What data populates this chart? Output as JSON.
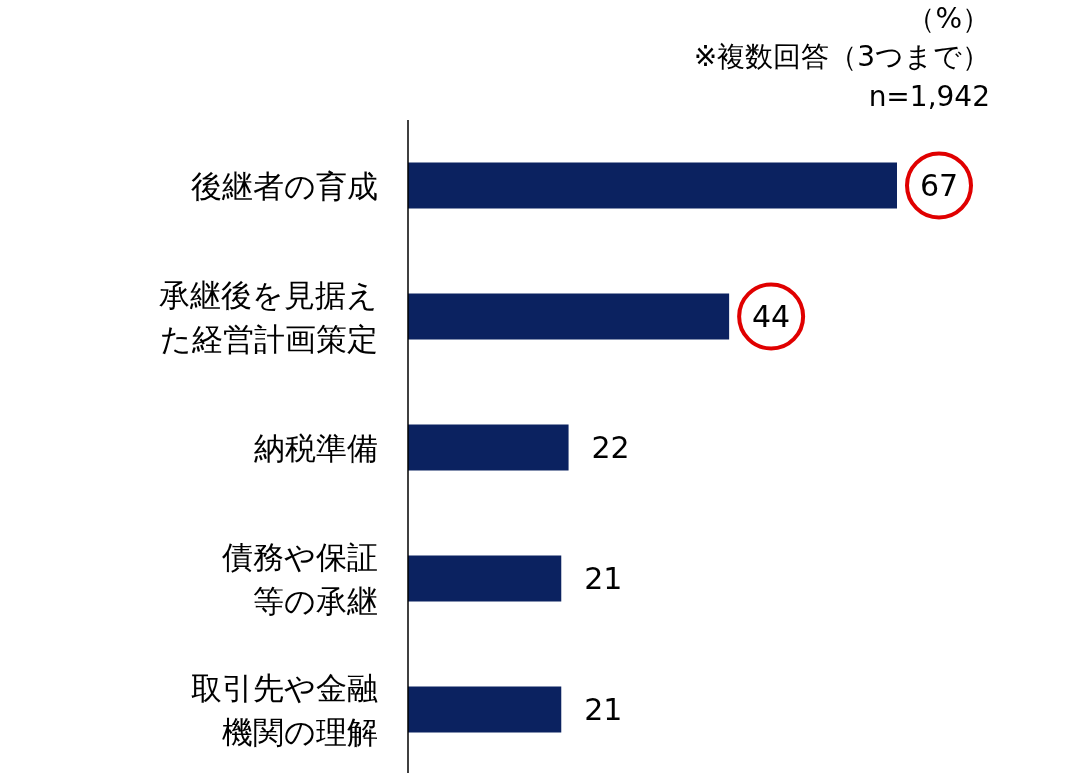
{
  "chart_data": {
    "type": "bar",
    "orientation": "horizontal",
    "categories": [
      "後継者の育成",
      "承継後を見据えた経営計画策定",
      "納税準備",
      "債務や保証等の承継",
      "取引先や金融機関の理解"
    ],
    "values": [
      67,
      44,
      22,
      21,
      21
    ],
    "color": "#0b2260",
    "data_labels": true,
    "annotations": [
      "（%）",
      "※複数回答（3つまで）",
      "n=1,942"
    ]
  }
}
